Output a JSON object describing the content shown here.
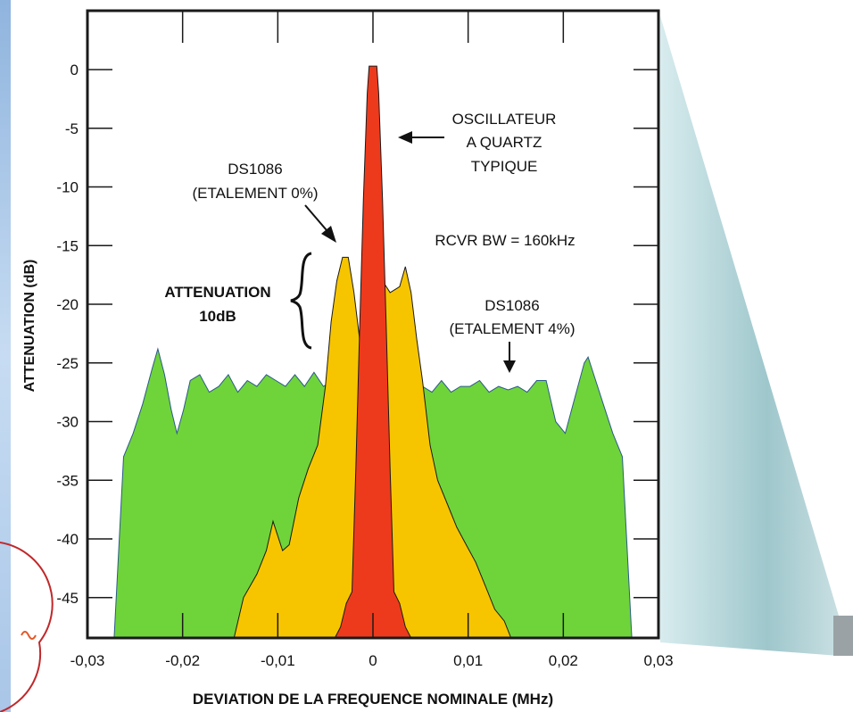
{
  "colors": {
    "green": "#6fd43a",
    "yellow": "#f7c500",
    "red": "#ee3a1c",
    "teal_gradient": "#9ec7cc",
    "left_strip": "#bcd3ec",
    "stroke": "#1a1a1a"
  },
  "chart_data": {
    "type": "area",
    "xlabel": "DEVIATION DE LA FREQUENCE NOMINALE (MHz)",
    "ylabel": "ATTENUATION (dB)",
    "xlim": [
      -0.03,
      0.03
    ],
    "ylim": [
      -49,
      5
    ],
    "x_ticks": [
      {
        "value": -0.03,
        "label": "-0,03"
      },
      {
        "value": -0.02,
        "label": "-0,02"
      },
      {
        "value": -0.01,
        "label": "-0,01"
      },
      {
        "value": 0,
        "label": "0"
      },
      {
        "value": 0.01,
        "label": "0,01"
      },
      {
        "value": 0.02,
        "label": "0,02"
      },
      {
        "value": 0.03,
        "label": "0,03"
      }
    ],
    "y_ticks": [
      {
        "value": 0,
        "label": "0"
      },
      {
        "value": -5,
        "label": "-5"
      },
      {
        "value": -10,
        "label": "-10"
      },
      {
        "value": -15,
        "label": "-15"
      },
      {
        "value": -20,
        "label": "-20"
      },
      {
        "value": -25,
        "label": "-25"
      },
      {
        "value": -30,
        "label": "-30"
      },
      {
        "value": -35,
        "label": "-35"
      },
      {
        "value": -40,
        "label": "-40"
      },
      {
        "value": -45,
        "label": "-45"
      }
    ],
    "series": [
      {
        "name": "DS1086 (ETALEMENT 4%)",
        "color": "#6fd43a",
        "points": [
          [
            -0.0272,
            -49
          ],
          [
            -0.0262,
            -33
          ],
          [
            -0.0252,
            -31
          ],
          [
            -0.0242,
            -28.5
          ],
          [
            -0.0232,
            -25.5
          ],
          [
            -0.0226,
            -23.8
          ],
          [
            -0.0219,
            -26
          ],
          [
            -0.0212,
            -29
          ],
          [
            -0.0206,
            -31
          ],
          [
            -0.0199,
            -29
          ],
          [
            -0.0192,
            -26.5
          ],
          [
            -0.0182,
            -26
          ],
          [
            -0.0172,
            -27.5
          ],
          [
            -0.0162,
            -27
          ],
          [
            -0.0152,
            -26
          ],
          [
            -0.0142,
            -27.5
          ],
          [
            -0.0132,
            -26.5
          ],
          [
            -0.0122,
            -27
          ],
          [
            -0.0112,
            -26
          ],
          [
            -0.0102,
            -26.5
          ],
          [
            -0.0092,
            -27
          ],
          [
            -0.0082,
            -26
          ],
          [
            -0.0072,
            -27
          ],
          [
            -0.0062,
            -25.8
          ],
          [
            -0.0052,
            -27
          ],
          [
            -0.0042,
            -26.5
          ],
          [
            -0.0032,
            -25.5
          ],
          [
            -0.0022,
            -26.5
          ],
          [
            -0.0012,
            -25.8
          ],
          [
            0,
            -26.5
          ],
          [
            0.0012,
            -25.8
          ],
          [
            0.0022,
            -26.5
          ],
          [
            0.0032,
            -27
          ],
          [
            0.0042,
            -26
          ],
          [
            0.0052,
            -27
          ],
          [
            0.0062,
            -27.5
          ],
          [
            0.0072,
            -26.5
          ],
          [
            0.0082,
            -27.5
          ],
          [
            0.0092,
            -27
          ],
          [
            0.0102,
            -27
          ],
          [
            0.0112,
            -26.5
          ],
          [
            0.0122,
            -27.5
          ],
          [
            0.0132,
            -27
          ],
          [
            0.0142,
            -27.3
          ],
          [
            0.0152,
            -27
          ],
          [
            0.0162,
            -27.5
          ],
          [
            0.0172,
            -26.5
          ],
          [
            0.0182,
            -26.5
          ],
          [
            0.0192,
            -30
          ],
          [
            0.0202,
            -31
          ],
          [
            0.0212,
            -28
          ],
          [
            0.0222,
            -25
          ],
          [
            0.0226,
            -24.5
          ],
          [
            0.0234,
            -26.5
          ],
          [
            0.0242,
            -28.5
          ],
          [
            0.0252,
            -31
          ],
          [
            0.0262,
            -33
          ],
          [
            0.0272,
            -49
          ]
        ]
      },
      {
        "name": "DS1086 (ETALEMENT 0%)",
        "color": "#f7c500",
        "points": [
          [
            -0.0146,
            -49
          ],
          [
            -0.0136,
            -45
          ],
          [
            -0.0122,
            -43
          ],
          [
            -0.0112,
            -41
          ],
          [
            -0.0105,
            -38.5
          ],
          [
            -0.0095,
            -41
          ],
          [
            -0.0088,
            -40.5
          ],
          [
            -0.0078,
            -36.5
          ],
          [
            -0.0068,
            -34
          ],
          [
            -0.0058,
            -32
          ],
          [
            -0.005,
            -27
          ],
          [
            -0.0044,
            -21.5
          ],
          [
            -0.0038,
            -18
          ],
          [
            -0.0032,
            -16
          ],
          [
            -0.0026,
            -16
          ],
          [
            -0.002,
            -19
          ],
          [
            -0.0014,
            -23
          ],
          [
            -0.0008,
            -22
          ],
          [
            0,
            -20
          ],
          [
            0.001,
            -18
          ],
          [
            0.0018,
            -19
          ],
          [
            0.0028,
            -18.5
          ],
          [
            0.0034,
            -16.8
          ],
          [
            0.004,
            -19
          ],
          [
            0.0046,
            -23
          ],
          [
            0.0052,
            -26.5
          ],
          [
            0.006,
            -32
          ],
          [
            0.0068,
            -35
          ],
          [
            0.0078,
            -37
          ],
          [
            0.0088,
            -39
          ],
          [
            0.0098,
            -40.5
          ],
          [
            0.0108,
            -42
          ],
          [
            0.0118,
            -44
          ],
          [
            0.0128,
            -46
          ],
          [
            0.0138,
            -47
          ],
          [
            0.0145,
            -49
          ]
        ]
      },
      {
        "name": "OSCILLATEUR A QUARTZ TYPIQUE",
        "color": "#ee3a1c",
        "points": [
          [
            -0.004,
            -49
          ],
          [
            -0.0034,
            -47.5
          ],
          [
            -0.0028,
            -45.5
          ],
          [
            -0.0022,
            -44.5
          ],
          [
            -0.0018,
            -34
          ],
          [
            -0.0014,
            -22
          ],
          [
            -0.001,
            -11
          ],
          [
            -0.0006,
            -2
          ],
          [
            -0.0004,
            0.3
          ],
          [
            0.0004,
            0.3
          ],
          [
            0.0006,
            -2
          ],
          [
            0.001,
            -11
          ],
          [
            0.0014,
            -22
          ],
          [
            0.0018,
            -34
          ],
          [
            0.0022,
            -44.5
          ],
          [
            0.0028,
            -45.5
          ],
          [
            0.0034,
            -47.5
          ],
          [
            0.004,
            -49
          ]
        ]
      }
    ],
    "annotations": {
      "quartz_l1": "OSCILLATEUR",
      "quartz_l2": "A QUARTZ",
      "quartz_l3": "TYPIQUE",
      "ds0_l1": "DS1086",
      "ds0_l2": "(ETALEMENT 0%)",
      "rcvr": "RCVR BW = 160kHz",
      "atten_l1": "ATTENUATION",
      "atten_l2": "10dB",
      "ds4_l1": "DS1086",
      "ds4_l2": "(ETALEMENT 4%)"
    },
    "grid": false,
    "legend": "none"
  }
}
